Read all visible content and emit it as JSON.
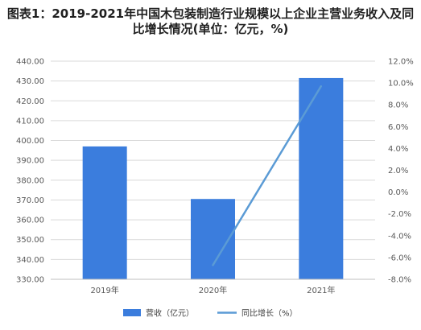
{
  "title": "图表1：2019-2021年中国木包装制造行业规模以上企业主营业务收入及同比增长情况(单位：亿元，%)",
  "colors": {
    "bar": "#3b7ddd",
    "line": "#5b9bd5",
    "grid": "#d9d9d9",
    "axis": "#bfbfbf"
  },
  "chart_data": {
    "type": "bar",
    "title": "图表1：2019-2021年中国木包装制造行业规模以上企业主营业务收入及同比增长情况(单位：亿元，%)",
    "categories": [
      "2019年",
      "2020年",
      "2021年"
    ],
    "y_left_ticks": [
      "330.00",
      "340.00",
      "350.00",
      "360.00",
      "370.00",
      "380.00",
      "390.00",
      "400.00",
      "410.00",
      "420.00",
      "430.00",
      "440.00"
    ],
    "y_right_ticks": [
      "-8.0%",
      "-6.0%",
      "-4.0%",
      "-2.0%",
      "0.0%",
      "2.0%",
      "4.0%",
      "6.0%",
      "8.0%",
      "10.0%",
      "12.0%"
    ],
    "ylim_left": [
      330,
      440
    ],
    "ylim_right": [
      -8,
      12
    ],
    "grid": true,
    "legend_position": "bottom",
    "series": [
      {
        "name": "营收（亿元）",
        "type": "bar",
        "axis": "left",
        "values": [
          397,
          370.5,
          431.5
        ]
      },
      {
        "name": "同比增长（%）",
        "type": "line",
        "axis": "right",
        "x": [
          "2020年",
          "2021年"
        ],
        "values": [
          -6.7,
          9.7
        ]
      }
    ]
  }
}
